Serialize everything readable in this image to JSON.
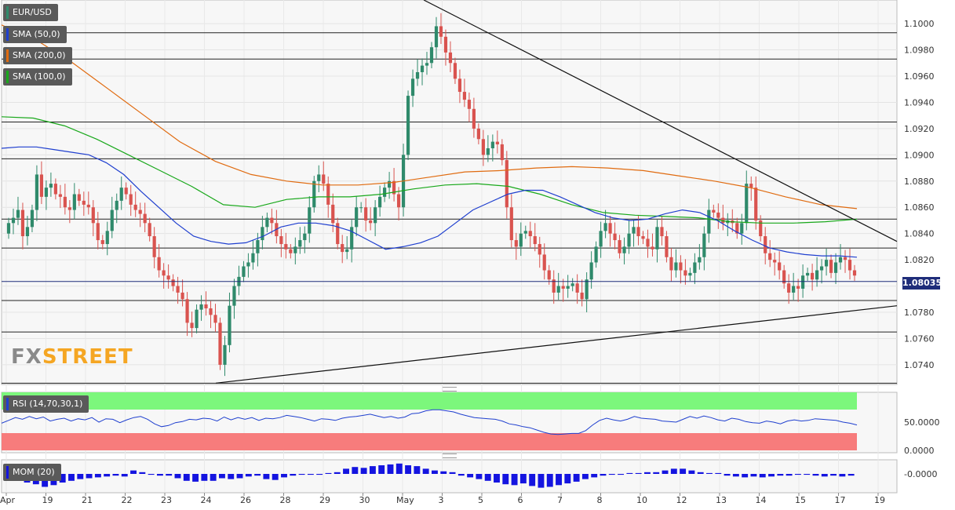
{
  "chart_data": [
    {
      "type": "candlestick",
      "symbol": "EUR/USD",
      "indicators": [
        {
          "label": "SMA (50,0)",
          "color": "#1f3fcf"
        },
        {
          "label": "SMA (200,0)",
          "color": "#e06b10"
        },
        {
          "label": "SMA (100,0)",
          "color": "#19a81b"
        }
      ],
      "y_ticks": [
        "1.1000",
        "1.0980",
        "1.0960",
        "1.0940",
        "1.0920",
        "1.0900",
        "1.0880",
        "1.0860",
        "1.0840",
        "1.0820",
        "1.0800",
        "1.0780",
        "1.0760",
        "1.0740"
      ],
      "ylim": [
        1.0725,
        1.1018
      ],
      "current_price": "1.08035",
      "x_ticks": [
        "Apr",
        "19",
        "21",
        "22",
        "23",
        "24",
        "26",
        "28",
        "29",
        "30",
        "May",
        "3",
        "5",
        "6",
        "7",
        "8",
        "10",
        "12",
        "13",
        "14",
        "15",
        "17",
        "19"
      ],
      "horizontal_levels": [
        1.0993,
        1.0973,
        1.0925,
        1.0897,
        1.0851,
        1.0829,
        1.0789,
        1.0765,
        1.0726
      ],
      "trendlines": [
        {
          "from": [
            "May 2",
            1.1018
          ],
          "to": [
            "May 17",
            1.0835
          ]
        },
        {
          "from": [
            "Apr 24",
            1.0726
          ],
          "to": [
            "May 17",
            1.0785
          ]
        }
      ],
      "candle_colors": {
        "up": "#2f8a6b",
        "down": "#d9534f"
      },
      "closes": [
        1.0848,
        1.0852,
        1.0858,
        1.0838,
        1.0845,
        1.0858,
        1.0885,
        1.0868,
        1.0875,
        1.0878,
        1.087,
        1.0868,
        1.086,
        1.0858,
        1.087,
        1.0865,
        1.0862,
        1.086,
        1.0848,
        1.0835,
        1.0832,
        1.0842,
        1.0858,
        1.0865,
        1.0875,
        1.087,
        1.0862,
        1.0858,
        1.0855,
        1.0848,
        1.0838,
        1.0822,
        1.0812,
        1.0808,
        1.0805,
        1.08,
        1.0795,
        1.079,
        1.0772,
        1.0768,
        1.0782,
        1.0786,
        1.0783,
        1.0778,
        1.0772,
        1.074,
        1.0755,
        1.0785,
        1.08,
        1.0807,
        1.0815,
        1.0818,
        1.0825,
        1.0835,
        1.0845,
        1.0852,
        1.0848,
        1.0838,
        1.0832,
        1.0828,
        1.0825,
        1.083,
        1.0835,
        1.084,
        1.086,
        1.088,
        1.0885,
        1.0878,
        1.0862,
        1.0848,
        1.0832,
        1.0826,
        1.0828,
        1.0845,
        1.086,
        1.086,
        1.085,
        1.0848,
        1.086,
        1.0868,
        1.0875,
        1.088,
        1.087,
        1.086,
        1.09,
        1.0945,
        1.0958,
        1.0963,
        1.0968,
        1.097,
        1.0982,
        1.0998,
        1.099,
        1.0978,
        1.097,
        1.0958,
        1.0948,
        1.0942,
        1.0935,
        1.092,
        1.0912,
        1.09,
        1.0905,
        1.091,
        1.0908,
        1.0896,
        1.086,
        1.0835,
        1.083,
        1.084,
        1.0842,
        1.0838,
        1.0832,
        1.0824,
        1.0812,
        1.0805,
        1.0795,
        1.08,
        1.0798,
        1.08,
        1.0802,
        1.0795,
        1.079,
        1.0805,
        1.0818,
        1.083,
        1.0842,
        1.0848,
        1.084,
        1.0835,
        1.0825,
        1.083,
        1.084,
        1.0845,
        1.0838,
        1.0836,
        1.083,
        1.0828,
        1.0845,
        1.0838,
        1.0822,
        1.0812,
        1.0818,
        1.0812,
        1.0808,
        1.081,
        1.0818,
        1.0822,
        1.084,
        1.0858,
        1.0856,
        1.0852,
        1.0848,
        1.085,
        1.0848,
        1.084,
        1.0848,
        1.0878,
        1.0875,
        1.085,
        1.0838,
        1.0825,
        1.082,
        1.0818,
        1.0812,
        1.0802,
        1.0795,
        1.08,
        1.0798,
        1.0808,
        1.081,
        1.0805,
        1.0812,
        1.0815,
        1.082,
        1.081,
        1.0818,
        1.0822,
        1.082,
        1.0812,
        1.0808
      ],
      "sma50": [
        1.0905,
        1.0906,
        1.0906,
        1.0904,
        1.0902,
        1.09,
        1.0894,
        1.0885,
        1.0872,
        1.086,
        1.0848,
        1.0838,
        1.0834,
        1.0832,
        1.0833,
        1.0838,
        1.0845,
        1.0848,
        1.0848,
        1.0846,
        1.0842,
        1.0835,
        1.0828,
        1.083,
        1.0833,
        1.0838,
        1.0848,
        1.0858,
        1.0864,
        1.087,
        1.0873,
        1.0873,
        1.0868,
        1.0862,
        1.0856,
        1.0852,
        1.085,
        1.0851,
        1.0855,
        1.0858,
        1.0856,
        1.085,
        1.0842,
        1.0835,
        1.0829,
        1.0826,
        1.0824,
        1.0823,
        1.0823,
        1.0822
      ],
      "sma200": [
        1.0999,
        1.0987,
        1.097,
        1.095,
        1.093,
        1.091,
        1.0895,
        1.0885,
        1.088,
        1.0877,
        1.0877,
        1.0879,
        1.0883,
        1.0887,
        1.0888,
        1.089,
        1.0891,
        1.089,
        1.0888,
        1.0884,
        1.088,
        1.0875,
        1.0868,
        1.0862,
        1.0859
      ],
      "sma100": [
        1.0929,
        1.0928,
        1.0922,
        1.0912,
        1.09,
        1.0888,
        1.0876,
        1.0862,
        1.086,
        1.0866,
        1.0868,
        1.0868,
        1.087,
        1.0874,
        1.0877,
        1.0878,
        1.0876,
        1.087,
        1.0862,
        1.0856,
        1.0854,
        1.0853,
        1.0852,
        1.0849,
        1.0848,
        1.0848,
        1.0849,
        1.0851
      ]
    },
    {
      "type": "line",
      "label": "RSI (14,70,30,1)",
      "y_ticks": [
        "50.0000",
        "0.0000"
      ],
      "ylim": [
        0,
        100
      ],
      "overbought": 70,
      "oversold": 30,
      "colors": {
        "line": "#1f3fcf",
        "overbought_band": "#7cf77c",
        "oversold_band": "#f77c7c"
      },
      "values": [
        48,
        53,
        58,
        55,
        60,
        56,
        59,
        52,
        55,
        57,
        52,
        56,
        54,
        58,
        50,
        56,
        55,
        49,
        54,
        58,
        60,
        55,
        47,
        42,
        44,
        49,
        51,
        55,
        54,
        57,
        56,
        52,
        59,
        54,
        58,
        55,
        58,
        53,
        57,
        56,
        58,
        62,
        60,
        58,
        55,
        52,
        56,
        55,
        53,
        57,
        59,
        60,
        62,
        64,
        61,
        58,
        60,
        57,
        59,
        65,
        66,
        70,
        72,
        72,
        70,
        68,
        64,
        61,
        58,
        57,
        56,
        55,
        52,
        47,
        45,
        42,
        40,
        36,
        32,
        29,
        28,
        29,
        30,
        30,
        35,
        45,
        53,
        57,
        54,
        52,
        55,
        60,
        57,
        56,
        55,
        52,
        51,
        50,
        55,
        60,
        57,
        61,
        58,
        54,
        52,
        57,
        55,
        51,
        49,
        48,
        52,
        50,
        47,
        52,
        54,
        52,
        53,
        56,
        55,
        54,
        53,
        50,
        48,
        45
      ]
    },
    {
      "type": "bar",
      "label": "MOM (20)",
      "y_ticks": [
        "-0.0000"
      ],
      "colors": {
        "bars": "#1414e0"
      },
      "values": [
        -0.4,
        -0.8,
        -1.0,
        -1.2,
        -1.5,
        -1.3,
        -1.0,
        -0.8,
        -0.6,
        -0.5,
        -0.4,
        -0.3,
        -0.2,
        -0.3,
        0.4,
        0.2,
        -0.1,
        -0.2,
        -0.2,
        -0.5,
        -0.8,
        -0.9,
        -0.8,
        -0.8,
        -0.5,
        -0.6,
        -0.5,
        -0.3,
        -0.2,
        -0.6,
        -0.7,
        -0.4,
        -0.2,
        -0.1,
        -0.1,
        -0.1,
        0.1,
        0.2,
        0.6,
        0.8,
        0.7,
        0.9,
        1.0,
        1.1,
        1.2,
        1.0,
        0.9,
        0.6,
        0.4,
        0.3,
        0.2,
        -0.2,
        -0.4,
        -0.6,
        -0.8,
        -1.0,
        -1.2,
        -1.3,
        -1.1,
        -1.4,
        -1.6,
        -1.5,
        -1.3,
        -1.1,
        -0.9,
        -0.6,
        -0.4,
        -0.2,
        -0.1,
        -0.1,
        0.1,
        0.1,
        0.2,
        0.2,
        0.4,
        0.6,
        0.6,
        0.4,
        0.2,
        0.1,
        0.1,
        -0.2,
        -0.3,
        -0.4,
        -0.3,
        -0.4,
        -0.3,
        -0.2,
        -0.2,
        -0.1,
        -0.1,
        -0.2,
        -0.3,
        -0.2,
        -0.3,
        -0.2
      ]
    }
  ],
  "branding": {
    "fx": "FX",
    "street": "STREET"
  }
}
